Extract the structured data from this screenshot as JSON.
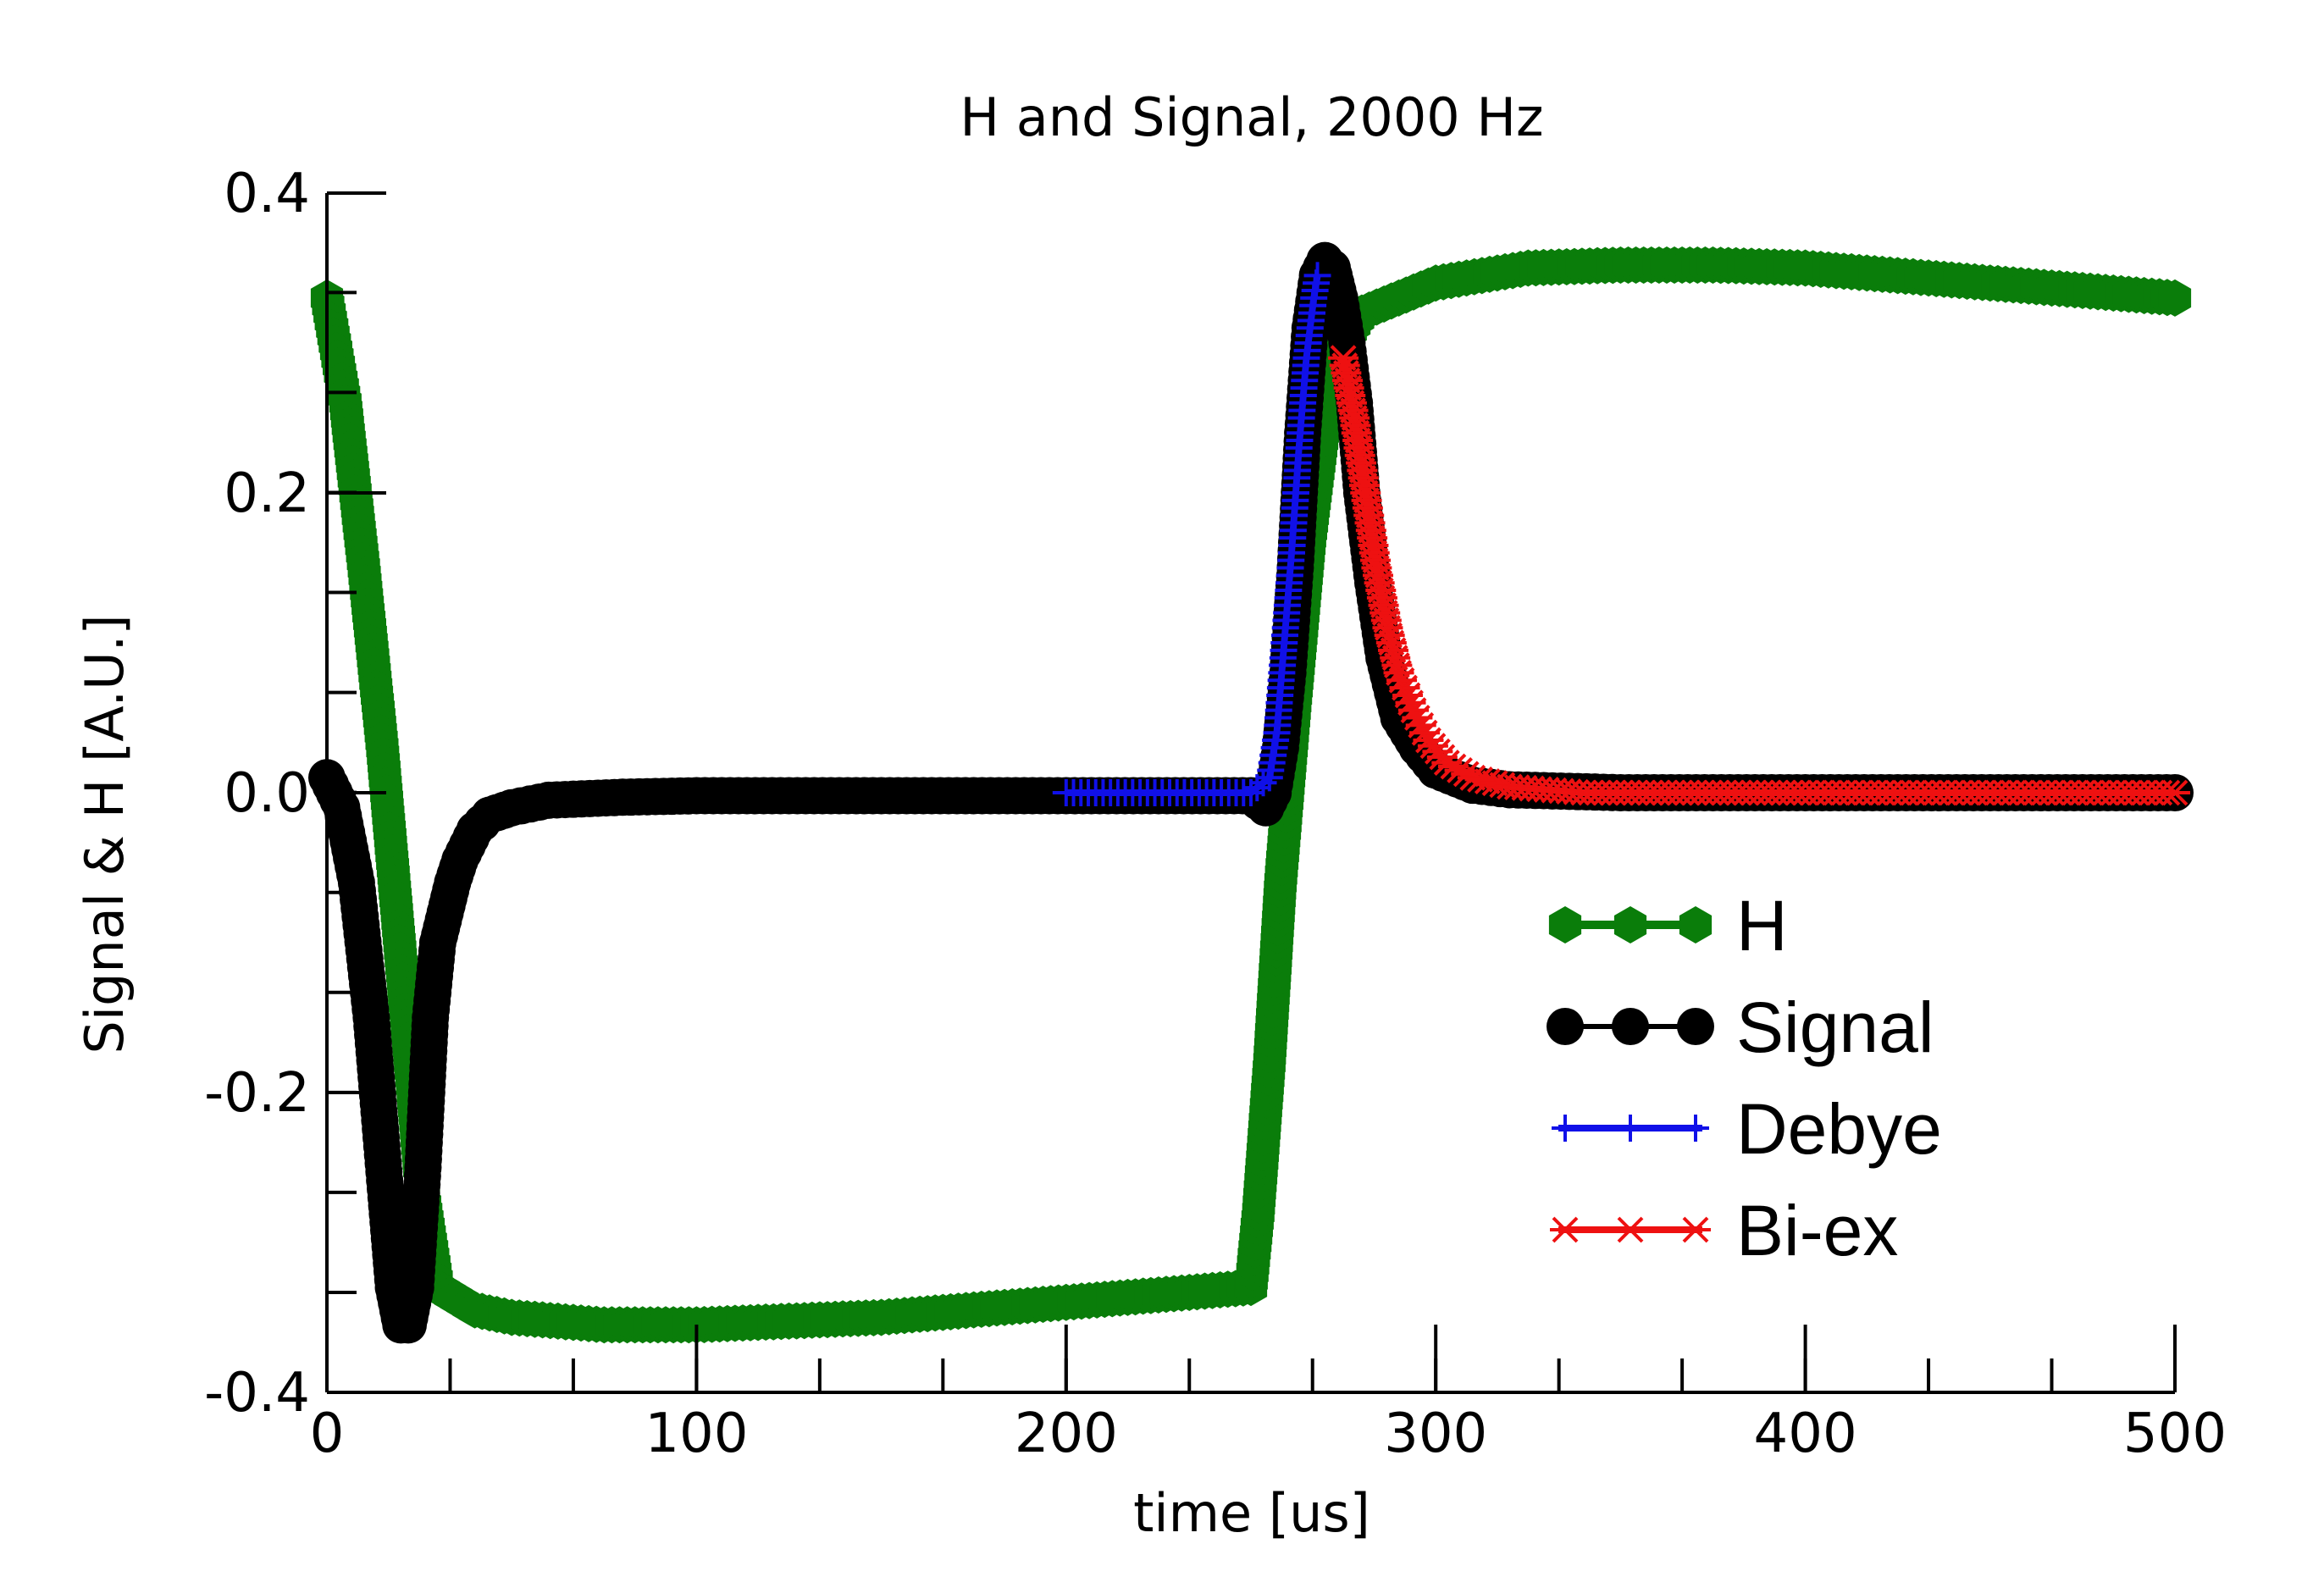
{
  "chart_data": {
    "type": "line",
    "title": "H and Signal, 2000 Hz",
    "xlabel": "time [us]",
    "ylabel": "Signal & H [A.U.]",
    "xlim": [
      0,
      500
    ],
    "ylim": [
      -0.4,
      0.4
    ],
    "x_ticks": [
      0,
      100,
      200,
      300,
      400,
      500
    ],
    "x_tick_labels": [
      "0",
      "100",
      "200",
      "300",
      "400",
      "500"
    ],
    "y_ticks": [
      -0.4,
      -0.2,
      0.0,
      0.2,
      0.4
    ],
    "y_tick_labels": [
      "-0.4",
      "-0.2",
      "0.0",
      "0.2",
      "0.4"
    ],
    "grid": false,
    "legend_position": "lower-right",
    "series": [
      {
        "name": "H",
        "color": "#0a7d0a",
        "marker": "hexagon",
        "x": [
          0,
          5,
          10,
          15,
          20,
          25,
          30,
          40,
          50,
          75,
          100,
          150,
          200,
          250,
          252,
          255,
          258,
          262,
          266,
          270,
          275,
          280,
          290,
          300,
          325,
          350,
          375,
          400,
          450,
          500
        ],
        "y": [
          0.33,
          0.26,
          0.15,
          0.03,
          -0.11,
          -0.25,
          -0.33,
          -0.345,
          -0.35,
          -0.355,
          -0.355,
          -0.35,
          -0.34,
          -0.33,
          -0.28,
          -0.18,
          -0.06,
          0.06,
          0.17,
          0.25,
          0.3,
          0.32,
          0.33,
          0.34,
          0.35,
          0.352,
          0.352,
          0.35,
          0.34,
          0.33
        ]
      },
      {
        "name": "Signal",
        "color": "#000000",
        "marker": "circle",
        "x": [
          0,
          4,
          8,
          12,
          16,
          18,
          20,
          22,
          24,
          26,
          28,
          30,
          32,
          34,
          36,
          38,
          40,
          44,
          50,
          60,
          80,
          100,
          150,
          200,
          250,
          254,
          256,
          258,
          260,
          262,
          264,
          266,
          268,
          270,
          272,
          274,
          276,
          278,
          280,
          283,
          286,
          290,
          295,
          300,
          310,
          320,
          350,
          400,
          450,
          500
        ],
        "y": [
          0.01,
          -0.01,
          -0.06,
          -0.15,
          -0.27,
          -0.33,
          -0.355,
          -0.355,
          -0.33,
          -0.25,
          -0.15,
          -0.1,
          -0.08,
          -0.06,
          -0.045,
          -0.035,
          -0.025,
          -0.015,
          -0.01,
          -0.005,
          -0.003,
          -0.002,
          -0.002,
          -0.002,
          -0.002,
          -0.01,
          0.0,
          0.03,
          0.08,
          0.15,
          0.24,
          0.31,
          0.345,
          0.355,
          0.35,
          0.33,
          0.3,
          0.26,
          0.2,
          0.14,
          0.09,
          0.05,
          0.03,
          0.015,
          0.005,
          0.002,
          0.0,
          0.0,
          0.0,
          0.0
        ]
      },
      {
        "name": "Debye",
        "color": "#1010e8",
        "marker": "plus",
        "x": [
          200,
          220,
          240,
          250,
          255,
          257,
          259,
          261,
          263,
          265,
          267,
          268
        ],
        "y": [
          0.0,
          0.0,
          0.0,
          0.0,
          0.01,
          0.04,
          0.1,
          0.16,
          0.23,
          0.29,
          0.33,
          0.345
        ]
      },
      {
        "name": "Bi-ex",
        "color": "#ee1111",
        "marker": "star",
        "x": [
          275,
          278,
          281,
          284,
          287,
          290,
          294,
          298,
          303,
          310,
          320,
          340,
          370,
          400,
          450,
          500
        ],
        "y": [
          0.29,
          0.25,
          0.2,
          0.15,
          0.11,
          0.08,
          0.055,
          0.035,
          0.02,
          0.01,
          0.004,
          0.0,
          0.0,
          0.0,
          0.0,
          0.0
        ]
      }
    ]
  }
}
